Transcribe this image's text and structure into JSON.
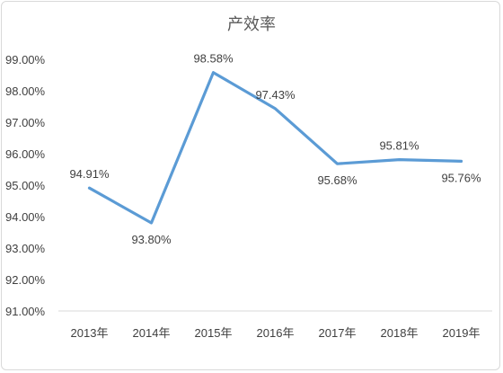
{
  "chart_data": {
    "type": "line",
    "title": "产效率",
    "categories": [
      "2013年",
      "2014年",
      "2015年",
      "2016年",
      "2017年",
      "2018年",
      "2019年"
    ],
    "series": [
      {
        "values": [
          94.91,
          93.8,
          98.58,
          97.43,
          95.68,
          95.81,
          95.76
        ],
        "labels": [
          "94.91%",
          "93.80%",
          "98.58%",
          "97.43%",
          "95.68%",
          "95.81%",
          "95.76%"
        ],
        "color": "#5b9bd5"
      }
    ],
    "ylim": [
      91,
      99
    ],
    "yticks": [
      "99.00%",
      "98.00%",
      "97.00%",
      "96.00%",
      "95.00%",
      "94.00%",
      "93.00%",
      "92.00%",
      "91.00%"
    ],
    "ytick_values": [
      99,
      98,
      97,
      96,
      95,
      94,
      93,
      92,
      91
    ],
    "grid": false,
    "legend": "none"
  }
}
